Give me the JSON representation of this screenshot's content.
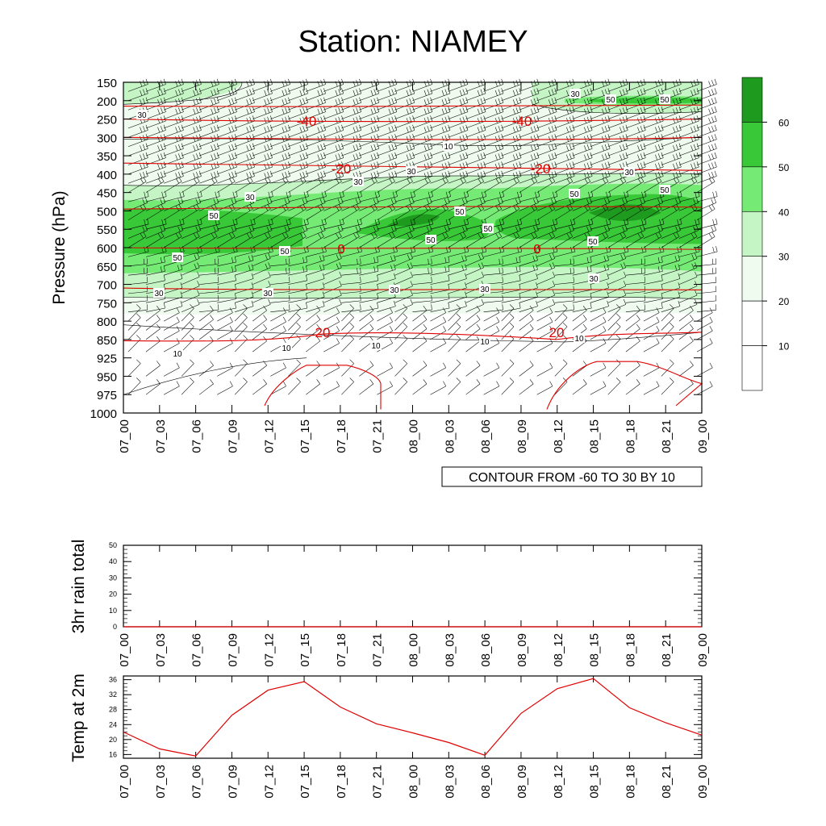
{
  "title": "Station: NIAMEY",
  "colors": {
    "temp_contour": "#e00000",
    "temp_line": "#e00000",
    "wind_barb": "#000000",
    "fill_levels": [
      "#ffffff",
      "#ffffff",
      "#eefbee",
      "#c5f5c5",
      "#75ea75",
      "#38c838",
      "#1e9b1e"
    ]
  },
  "chart_data": [
    {
      "type": "heatmap",
      "name": "time-height cross section",
      "ylabel": "Pressure (hPa)",
      "y_ticks": [
        150,
        200,
        250,
        300,
        350,
        400,
        450,
        500,
        550,
        600,
        650,
        700,
        750,
        800,
        850,
        925,
        950,
        975,
        1000
      ],
      "x_ticks": [
        "07_00",
        "07_03",
        "07_06",
        "07_09",
        "07_12",
        "07_15",
        "07_18",
        "07_21",
        "08_00",
        "08_03",
        "08_06",
        "08_09",
        "08_12",
        "08_15",
        "08_18",
        "08_21",
        "09_00"
      ],
      "info_box": "CONTOUR FROM -60 TO 30 BY 10",
      "fill_field": "wind speed (shaded, contour labels 10-50)",
      "fill_contour_labels": [
        "30",
        "10",
        "30",
        "30",
        "30",
        "50",
        "50",
        "50",
        "50",
        "50",
        "50",
        "50",
        "50",
        "50",
        "30",
        "30",
        "30",
        "30",
        "30",
        "10",
        "10",
        "10",
        "10",
        "10",
        "30",
        "50",
        "50",
        "30"
      ],
      "colorbar": {
        "levels": [
          10,
          20,
          30,
          40,
          50,
          60
        ],
        "labels": [
          "10",
          "20",
          "30",
          "40",
          "50",
          "60"
        ]
      },
      "temperature_contours": [
        {
          "label": "-40",
          "pressure": 255
        },
        {
          "label": "-40",
          "pressure": 255
        },
        {
          "label": "-20",
          "pressure": 385
        },
        {
          "label": "-20",
          "pressure": 385
        },
        {
          "label": "0",
          "pressure": 603
        },
        {
          "label": "0",
          "pressure": 603
        },
        {
          "label": "20",
          "pressure": 830
        },
        {
          "label": "20",
          "pressure": 830
        }
      ]
    },
    {
      "type": "line",
      "name": "rain",
      "ylabel": "3hr rain total",
      "ylim": [
        0,
        50
      ],
      "y_ticks": [
        0,
        10,
        20,
        30,
        40,
        50
      ],
      "x": [
        "07_00",
        "07_03",
        "07_06",
        "07_09",
        "07_12",
        "07_15",
        "07_18",
        "07_21",
        "08_00",
        "08_03",
        "08_06",
        "08_09",
        "08_12",
        "08_15",
        "08_18",
        "08_21",
        "09_00"
      ],
      "values": [
        0,
        0,
        0,
        0,
        0,
        0,
        0,
        0,
        0,
        0,
        0,
        0,
        0,
        0,
        0,
        0,
        0
      ]
    },
    {
      "type": "line",
      "name": "temperature",
      "ylabel": "Temp at 2m",
      "ylim": [
        15,
        37
      ],
      "y_ticks": [
        16,
        20,
        24,
        28,
        32,
        36
      ],
      "x": [
        "07_00",
        "07_03",
        "07_06",
        "07_09",
        "07_12",
        "07_15",
        "07_18",
        "07_21",
        "08_00",
        "08_03",
        "08_06",
        "08_09",
        "08_12",
        "08_15",
        "08_18",
        "08_21",
        "09_00"
      ],
      "values": [
        22.0,
        17.5,
        15.6,
        26.5,
        33.2,
        35.5,
        28.7,
        24.2,
        21.8,
        19.2,
        15.8,
        27.0,
        33.6,
        36.3,
        28.5,
        24.5,
        21.2
      ]
    }
  ]
}
